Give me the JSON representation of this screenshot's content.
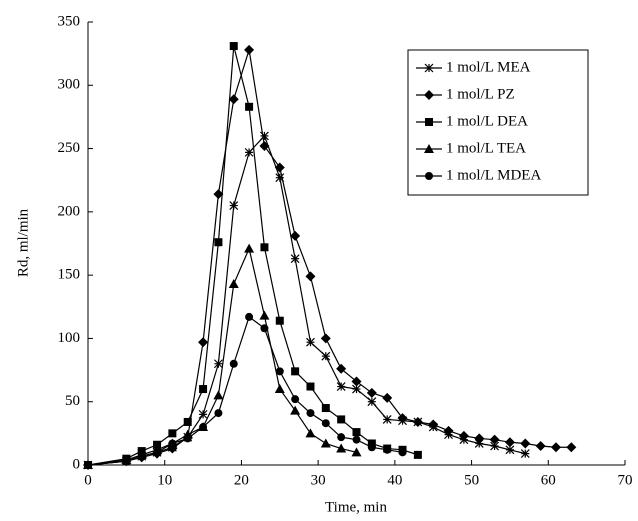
{
  "chart_data": {
    "type": "scatter-line",
    "x_label": "Time, min",
    "y_label": "Rd, ml/min",
    "xlim": [
      0,
      70
    ],
    "xticks": [
      0,
      10,
      20,
      30,
      40,
      50,
      60,
      70
    ],
    "ylim": [
      0,
      350
    ],
    "yticks": [
      0,
      50,
      100,
      150,
      200,
      250,
      300,
      350
    ],
    "grid": false,
    "legend": "top-right",
    "series": [
      {
        "name": "1 mol/L MEA",
        "color": "#000000",
        "marker": "star",
        "x": [
          0,
          5,
          7,
          9,
          11,
          13,
          15,
          17,
          19,
          21,
          23,
          25,
          27,
          29,
          31,
          33,
          35,
          37,
          39,
          41,
          43,
          45,
          47,
          49,
          51,
          53,
          55,
          57
        ],
        "values": [
          0,
          3,
          7,
          10,
          14,
          22,
          40,
          80,
          205,
          247,
          260,
          227,
          163,
          97,
          86,
          62,
          60,
          50,
          36,
          35,
          34,
          30,
          24,
          20,
          17,
          15,
          12,
          9
        ]
      },
      {
        "name": "1 mol/L PZ",
        "color": "#000000",
        "marker": "diamond",
        "x": [
          0,
          5,
          7,
          9,
          11,
          13,
          15,
          17,
          19,
          21,
          23,
          25,
          27,
          29,
          31,
          33,
          35,
          37,
          39,
          41,
          43,
          45,
          47,
          49,
          51,
          53,
          55,
          57,
          59,
          61,
          63
        ],
        "values": [
          0,
          3,
          6,
          9,
          13,
          22,
          97,
          214,
          289,
          328,
          252,
          235,
          181,
          149,
          100,
          76,
          66,
          57,
          53,
          37,
          34,
          32,
          27,
          23,
          21,
          20,
          18,
          17,
          15,
          14,
          14
        ]
      },
      {
        "name": "1 mol/L DEA",
        "color": "#000000",
        "marker": "square",
        "x": [
          0,
          5,
          7,
          9,
          11,
          13,
          15,
          17,
          19,
          21,
          23,
          25,
          27,
          29,
          31,
          33,
          35,
          37,
          39,
          41,
          43
        ],
        "values": [
          0,
          5,
          11,
          16,
          25,
          34,
          60,
          176,
          331,
          283,
          172,
          114,
          74,
          62,
          45,
          36,
          26,
          17,
          13,
          12,
          8
        ]
      },
      {
        "name": "1 mol/L TEA",
        "color": "#000000",
        "marker": "triangle",
        "x": [
          0,
          5,
          7,
          9,
          11,
          13,
          15,
          17,
          19,
          21,
          23,
          25,
          27,
          29,
          31,
          33,
          35
        ],
        "values": [
          0,
          4,
          8,
          12,
          17,
          24,
          30,
          55,
          143,
          171,
          118,
          60,
          43,
          25,
          17,
          13,
          10
        ]
      },
      {
        "name": "1 mol/L MDEA",
        "color": "#000000",
        "marker": "circle",
        "x": [
          0,
          5,
          7,
          9,
          11,
          13,
          15,
          17,
          19,
          21,
          23,
          25,
          27,
          29,
          31,
          33,
          35,
          37,
          39,
          41
        ],
        "values": [
          0,
          3,
          7,
          10,
          17,
          21,
          30,
          41,
          80,
          117,
          108,
          74,
          52,
          41,
          33,
          22,
          20,
          14,
          12,
          10
        ]
      }
    ]
  }
}
